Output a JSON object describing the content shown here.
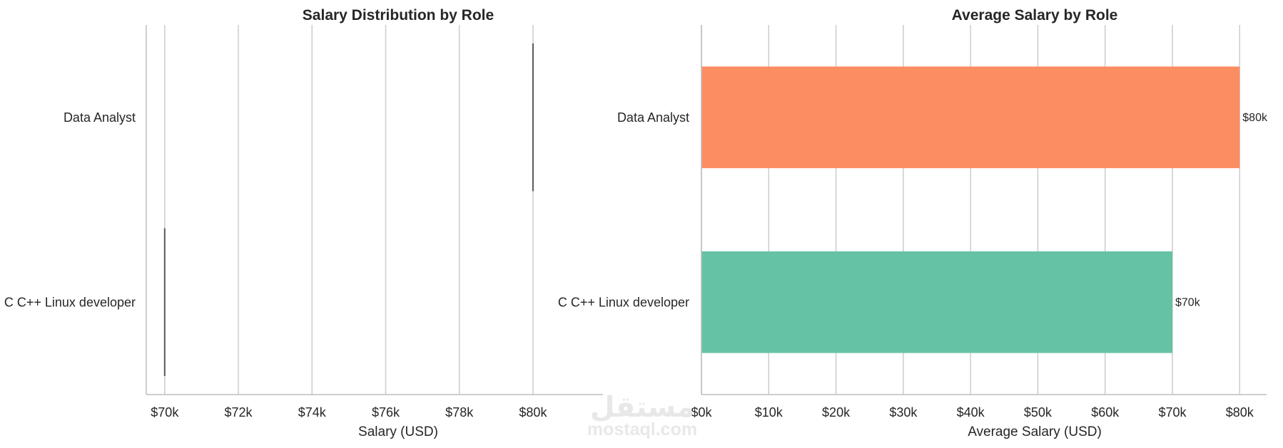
{
  "chart_data": [
    {
      "type": "box",
      "title": "Salary Distribution by Role",
      "xlabel": "Salary (USD)",
      "ylabel": "",
      "categories": [
        "Data Analyst",
        "C C++ Linux developer"
      ],
      "values": [
        80000,
        70000
      ],
      "xlim": [
        69500,
        81900
      ],
      "xticks": [
        70000,
        72000,
        74000,
        76000,
        78000,
        80000
      ],
      "xtick_labels": [
        "$70k",
        "$72k",
        "$74k",
        "$76k",
        "$78k",
        "$80k"
      ],
      "grid": "vertical",
      "line_color": "#595959"
    },
    {
      "type": "bar",
      "orientation": "horizontal",
      "title": "Average Salary by Role",
      "xlabel": "Average Salary (USD)",
      "ylabel": "",
      "categories": [
        "Data Analyst",
        "C C++ Linux developer"
      ],
      "values": [
        80000,
        70000
      ],
      "value_labels": [
        "$80k",
        "$70k"
      ],
      "colors": [
        "#fc8d62",
        "#66c2a5"
      ],
      "xlim": [
        0,
        84000
      ],
      "xticks": [
        0,
        10000,
        20000,
        30000,
        40000,
        50000,
        60000,
        70000,
        80000
      ],
      "xtick_labels": [
        "$0k",
        "$10k",
        "$20k",
        "$30k",
        "$40k",
        "$50k",
        "$60k",
        "$70k",
        "$80k"
      ],
      "grid": "vertical"
    }
  ],
  "watermark": {
    "arabic": "مستقل",
    "latin": "mostaql.com"
  }
}
